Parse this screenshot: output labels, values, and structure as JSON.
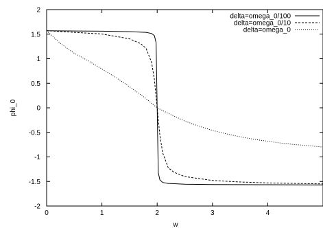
{
  "chart_data": {
    "type": "line",
    "title": "",
    "xlabel": "w",
    "ylabel": "phi_0",
    "xlim": [
      0,
      5
    ],
    "ylim": [
      -2,
      2
    ],
    "x_ticks": [
      "0",
      "1",
      "2",
      "3",
      "4"
    ],
    "y_ticks": [
      "-2",
      "-1.5",
      "-1",
      "-0.5",
      "0",
      "0.5",
      "1",
      "1.5",
      "2"
    ],
    "grid": false,
    "legend_position": "top-right",
    "series": [
      {
        "name": "delta=omega_0/100",
        "style": "solid",
        "x": [
          0,
          0.5,
          1,
          1.5,
          1.8,
          1.9,
          1.95,
          1.98,
          2,
          2.02,
          2.05,
          2.1,
          2.2,
          2.5,
          3,
          4,
          5
        ],
        "y": [
          1.57,
          1.565,
          1.561,
          1.551,
          1.537,
          1.513,
          1.468,
          1.325,
          0,
          -1.32,
          -1.47,
          -1.52,
          -1.54,
          -1.555,
          -1.564,
          -1.567,
          -1.569
        ]
      },
      {
        "name": "delta=omega_0/10",
        "style": "dashed",
        "x": [
          0,
          0.5,
          1,
          1.5,
          1.7,
          1.8,
          1.9,
          1.95,
          2,
          2.05,
          2.1,
          2.2,
          2.3,
          2.5,
          3,
          3.5,
          4,
          4.5,
          5
        ],
        "y": [
          1.57,
          1.537,
          1.504,
          1.405,
          1.307,
          1.21,
          0.921,
          0.571,
          0,
          -0.57,
          -0.92,
          -1.22,
          -1.31,
          -1.4,
          -1.48,
          -1.51,
          -1.53,
          -1.54,
          -1.55
        ]
      },
      {
        "name": "delta=omega_0",
        "style": "dotted",
        "x": [
          0,
          0.25,
          0.5,
          0.75,
          1,
          1.25,
          1.5,
          1.75,
          2,
          2.25,
          2.5,
          2.75,
          3,
          3.25,
          3.5,
          3.75,
          4,
          4.25,
          4.5,
          4.75,
          5
        ],
        "y": [
          1.57,
          1.31,
          1.11,
          0.96,
          0.79,
          0.62,
          0.43,
          0.23,
          0,
          -0.14,
          -0.27,
          -0.37,
          -0.46,
          -0.53,
          -0.59,
          -0.64,
          -0.68,
          -0.72,
          -0.75,
          -0.77,
          -0.8
        ]
      }
    ]
  }
}
